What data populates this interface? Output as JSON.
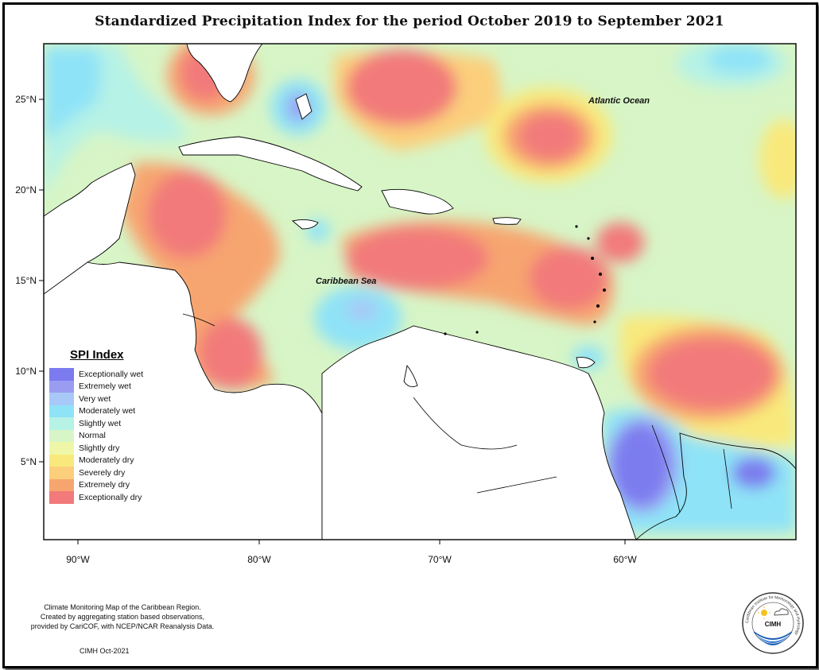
{
  "title": "Standardized Precipitation Index for the period October 2019 to September 2021",
  "labels": {
    "atlantic": "Atlantic Ocean",
    "caribbean": "Caribbean Sea"
  },
  "axes": {
    "lat_ticks": [
      "25°N",
      "20°N",
      "15°N",
      "10°N",
      "5°N"
    ],
    "lon_ticks": [
      "90°W",
      "80°W",
      "70°W",
      "60°W"
    ]
  },
  "legend": {
    "title": "SPI Index",
    "items": [
      {
        "label": "Exceptionally wet",
        "color": "#7b7bef"
      },
      {
        "label": "Extremely wet",
        "color": "#9a9cf2"
      },
      {
        "label": "Very wet",
        "color": "#a8c8f7"
      },
      {
        "label": "Moderately wet",
        "color": "#8fe3f7"
      },
      {
        "label": "Slightly wet",
        "color": "#b6f2e6"
      },
      {
        "label": "Normal",
        "color": "#d7f5c6"
      },
      {
        "label": "Slightly dry",
        "color": "#eef7a8"
      },
      {
        "label": "Moderately dry",
        "color": "#f9e97c"
      },
      {
        "label": "Severely dry",
        "color": "#fbcf7b"
      },
      {
        "label": "Extremely dry",
        "color": "#f7a56f"
      },
      {
        "label": "Exceptionally dry",
        "color": "#f27a7a"
      }
    ]
  },
  "credits": {
    "line1": "Climate Monitoring Map of the Caribbean Region.",
    "line2": "Created by aggregating station based observations,",
    "line3": "provided by CariCOF, with NCEP/NCAR Reanalysis Data.",
    "stamp": "CIMH Oct-2021"
  },
  "logo": {
    "text": "CIMH",
    "ring_text": "Caribbean Institute for Meteorology and Hydrology",
    "icons": [
      "sun-icon",
      "cloud-icon",
      "water-waves-icon"
    ]
  }
}
